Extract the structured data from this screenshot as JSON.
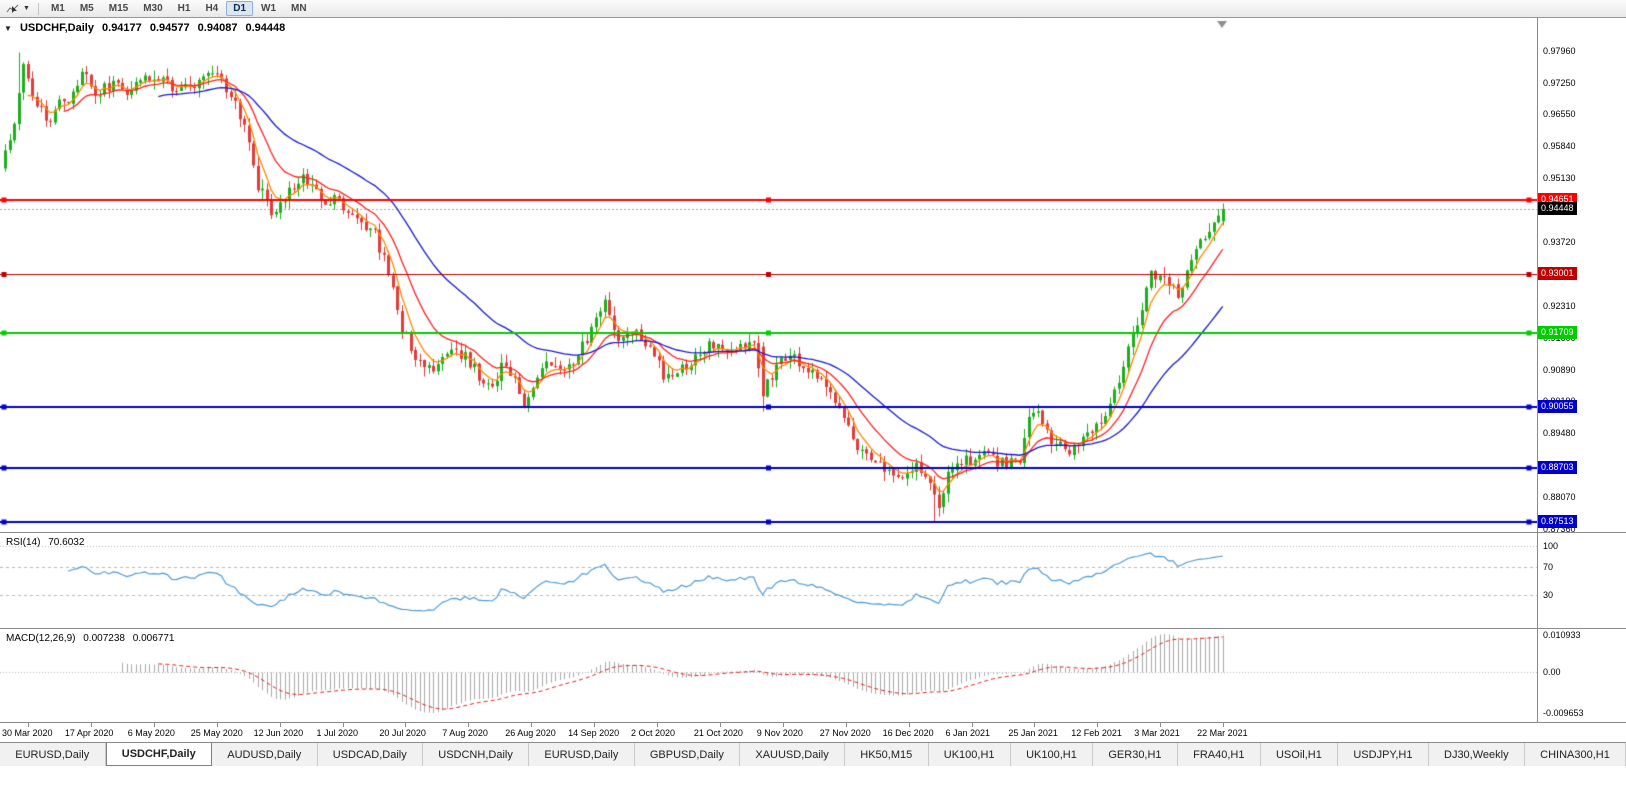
{
  "toolbar": {
    "cursor_tool": "chart-cursor",
    "timeframes": [
      {
        "label": "M1",
        "active": false
      },
      {
        "label": "M5",
        "active": false
      },
      {
        "label": "M15",
        "active": false
      },
      {
        "label": "M30",
        "active": false
      },
      {
        "label": "H1",
        "active": false
      },
      {
        "label": "H4",
        "active": false
      },
      {
        "label": "D1",
        "active": true
      },
      {
        "label": "W1",
        "active": false
      },
      {
        "label": "MN",
        "active": false
      }
    ]
  },
  "chart_header": {
    "symbol": "USDCHF,Daily",
    "open": "0.94177",
    "high": "0.94577",
    "low": "0.94087",
    "close": "0.94448"
  },
  "main_panel": {
    "price_max": 0.98686,
    "price_min": 0.8729,
    "y_ticks": [
      "0.97960",
      "0.97250",
      "0.96550",
      "0.95840",
      "0.95130",
      "0.94430",
      "0.93720",
      "0.93010",
      "0.92310",
      "0.91600",
      "0.90890",
      "0.90190",
      "0.89480",
      "0.88770",
      "0.88070",
      "0.87360"
    ],
    "levels": [
      {
        "value": "0.94651",
        "price": 0.94651,
        "color": "#FF0000",
        "width": 2,
        "handles": true
      },
      {
        "value": "0.93001",
        "price": 0.93001,
        "color": "#C00000",
        "width": 1,
        "handles": true
      },
      {
        "value": "0.91709",
        "price": 0.91709,
        "color": "#00CC00",
        "width": 2,
        "handles": true
      },
      {
        "value": "0.90055",
        "price": 0.90055,
        "color": "#0000CC",
        "width": 2,
        "handles": true
      },
      {
        "value": "0.88703",
        "price": 0.88703,
        "color": "#0000CC",
        "width": 2,
        "handles": true
      },
      {
        "value": "0.87513",
        "price": 0.87513,
        "color": "#0000CC",
        "width": 2,
        "handles": true
      }
    ],
    "current_price": {
      "value": "0.94448",
      "price": 0.94448,
      "box_color": "#000000",
      "line_color": "#aaaaaa"
    }
  },
  "rsi_panel": {
    "name": "RSI(14)",
    "value": "70.6032",
    "line_color": "#4f9bd5",
    "levels": [
      {
        "value": "100",
        "level": 100
      },
      {
        "value": "70",
        "level": 70
      },
      {
        "value": "30",
        "level": 30
      }
    ]
  },
  "macd_panel": {
    "name": "MACD(12,26,9)",
    "macd_value": "0.007238",
    "signal_value": "0.006771",
    "bar_color": "#a8a8a8",
    "signal_color": "#e02020",
    "axis": {
      "max": "0.010933",
      "zero": "0.00",
      "min": "-0.009653"
    }
  },
  "x_axis": {
    "dates": [
      "30 Mar 2020",
      "17 Apr 2020",
      "6 May 2020",
      "25 May 2020",
      "12 Jun 2020",
      "1 Jul 2020",
      "20 Jul 2020",
      "7 Aug 2020",
      "26 Aug 2020",
      "14 Sep 2020",
      "2 Oct 2020",
      "21 Oct 2020",
      "9 Nov 2020",
      "27 Nov 2020",
      "16 Dec 2020",
      "6 Jan 2021",
      "25 Jan 2021",
      "12 Feb 2021",
      "3 Mar 2021",
      "22 Mar 2021"
    ]
  },
  "tabs": [
    {
      "label": "EURUSD,Daily",
      "active": false
    },
    {
      "label": "USDCHF,Daily",
      "active": true
    },
    {
      "label": "AUDUSD,Daily",
      "active": false
    },
    {
      "label": "USDCAD,Daily",
      "active": false
    },
    {
      "label": "USDCNH,Daily",
      "active": false
    },
    {
      "label": "EURUSD,Daily",
      "active": false
    },
    {
      "label": "GBPUSD,Daily",
      "active": false
    },
    {
      "label": "XAUUSD,Daily",
      "active": false
    },
    {
      "label": "HK50,M15",
      "active": false
    },
    {
      "label": "UK100,H1",
      "active": false
    },
    {
      "label": "UK100,H1",
      "active": false
    },
    {
      "label": "GER30,H1",
      "active": false
    },
    {
      "label": "FRA40,H1",
      "active": false
    },
    {
      "label": "USOil,H1",
      "active": false
    },
    {
      "label": "USDJPY,H1",
      "active": false
    },
    {
      "label": "DJ30,Weekly",
      "active": false
    },
    {
      "label": "CHINA300,H1",
      "active": false
    }
  ],
  "chart_data": {
    "type": "candlestick",
    "symbol": "USDCHF",
    "timeframe": "Daily",
    "candle_count": 271,
    "up_color": "#1fae1f",
    "down_color": "#e23b3b",
    "last_candle": {
      "open": 0.94177,
      "high": 0.94577,
      "low": 0.94087,
      "close": 0.94448
    },
    "close_anchors": [
      [
        0,
        0.9575
      ],
      [
        2,
        0.964
      ],
      [
        4,
        0.9762
      ],
      [
        6,
        0.97
      ],
      [
        9,
        0.9638
      ],
      [
        12,
        0.968
      ],
      [
        14,
        0.9672
      ],
      [
        17,
        0.9745
      ],
      [
        20,
        0.9705
      ],
      [
        24,
        0.9722
      ],
      [
        28,
        0.97
      ],
      [
        31,
        0.9748
      ],
      [
        34,
        0.973
      ],
      [
        38,
        0.971
      ],
      [
        42,
        0.9712
      ],
      [
        46,
        0.9745
      ],
      [
        50,
        0.97
      ],
      [
        53,
        0.962
      ],
      [
        56,
        0.95
      ],
      [
        59,
        0.9435
      ],
      [
        62,
        0.9475
      ],
      [
        66,
        0.9512
      ],
      [
        70,
        0.9468
      ],
      [
        74,
        0.9462
      ],
      [
        78,
        0.9412
      ],
      [
        82,
        0.9388
      ],
      [
        84,
        0.933
      ],
      [
        86,
        0.928
      ],
      [
        88,
        0.918
      ],
      [
        91,
        0.9105
      ],
      [
        94,
        0.9088
      ],
      [
        98,
        0.913
      ],
      [
        102,
        0.912
      ],
      [
        105,
        0.9078
      ],
      [
        108,
        0.904
      ],
      [
        110,
        0.9105
      ],
      [
        112,
        0.908
      ],
      [
        115,
        0.902
      ],
      [
        118,
        0.907
      ],
      [
        121,
        0.911
      ],
      [
        124,
        0.909
      ],
      [
        126,
        0.9095
      ],
      [
        129,
        0.916
      ],
      [
        131,
        0.9215
      ],
      [
        133,
        0.9248
      ],
      [
        135,
        0.918
      ],
      [
        137,
        0.915
      ],
      [
        140,
        0.9165
      ],
      [
        143,
        0.9135
      ],
      [
        146,
        0.908
      ],
      [
        148,
        0.9062
      ],
      [
        151,
        0.91
      ],
      [
        154,
        0.9128
      ],
      [
        157,
        0.9148
      ],
      [
        160,
        0.9128
      ],
      [
        163,
        0.9135
      ],
      [
        166,
        0.915
      ],
      [
        168,
        0.9035
      ],
      [
        170,
        0.908
      ],
      [
        172,
        0.911
      ],
      [
        174,
        0.9125
      ],
      [
        176,
        0.91
      ],
      [
        179,
        0.9085
      ],
      [
        182,
        0.906
      ],
      [
        184,
        0.902
      ],
      [
        186,
        0.8975
      ],
      [
        188,
        0.894
      ],
      [
        190,
        0.89
      ],
      [
        193,
        0.8882
      ],
      [
        196,
        0.8868
      ],
      [
        199,
        0.8852
      ],
      [
        202,
        0.889
      ],
      [
        205,
        0.883
      ],
      [
        207,
        0.8795
      ],
      [
        209,
        0.8862
      ],
      [
        211,
        0.889
      ],
      [
        213,
        0.8885
      ],
      [
        216,
        0.8902
      ],
      [
        219,
        0.889
      ],
      [
        222,
        0.888
      ],
      [
        225,
        0.8895
      ],
      [
        227,
        0.8985
      ],
      [
        229,
        0.9
      ],
      [
        231,
        0.8955
      ],
      [
        233,
        0.892
      ],
      [
        236,
        0.8908
      ],
      [
        238,
        0.8925
      ],
      [
        240,
        0.8955
      ],
      [
        242,
        0.8968
      ],
      [
        244,
        0.8995
      ],
      [
        246,
        0.904
      ],
      [
        248,
        0.9095
      ],
      [
        250,
        0.916
      ],
      [
        252,
        0.923
      ],
      [
        254,
        0.9295
      ],
      [
        256,
        0.931
      ],
      [
        258,
        0.927
      ],
      [
        260,
        0.9262
      ],
      [
        262,
        0.93
      ],
      [
        264,
        0.9345
      ],
      [
        266,
        0.9385
      ],
      [
        268,
        0.941
      ],
      [
        270,
        0.94448
      ]
    ],
    "overrides": [
      {
        "index": 3,
        "high": 0.9792
      },
      {
        "index": 168,
        "open": 0.914,
        "close": 0.903,
        "high": 0.915,
        "low": 0.8996
      },
      {
        "index": 206,
        "low": 0.8753
      }
    ],
    "moving_averages": [
      {
        "period": 5,
        "color": "#ff8800"
      },
      {
        "period": 13,
        "color": "#ff2020"
      },
      {
        "period": 34,
        "color": "#1a1acc"
      }
    ],
    "indicators": {
      "rsi_period": 14,
      "macd": [
        12,
        26,
        9
      ]
    }
  }
}
